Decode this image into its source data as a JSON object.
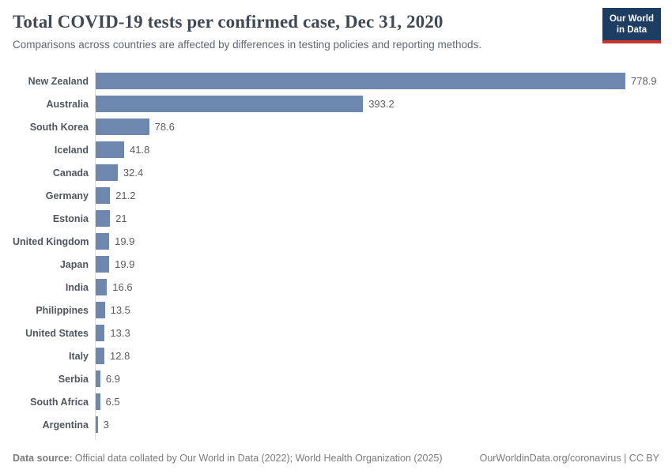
{
  "header": {
    "title": "Total COVID-19 tests per confirmed case, Dec 31, 2020",
    "subtitle": "Comparisons across countries are affected by differences in testing policies and reporting methods.",
    "logo": {
      "line1": "Our World",
      "line2": "in Data"
    }
  },
  "chart_data": {
    "type": "bar",
    "orientation": "horizontal",
    "title": "Total COVID-19 tests per confirmed case, Dec 31, 2020",
    "xlabel": "",
    "ylabel": "",
    "xlim": [
      0,
      778.9
    ],
    "grid": false,
    "legend": false,
    "bar_color": "#6d87ae",
    "categories": [
      "New Zealand",
      "Australia",
      "South Korea",
      "Iceland",
      "Canada",
      "Germany",
      "Estonia",
      "United Kingdom",
      "Japan",
      "India",
      "Philippines",
      "United States",
      "Italy",
      "Serbia",
      "South Africa",
      "Argentina"
    ],
    "values": [
      778.9,
      393.2,
      78.6,
      41.8,
      32.4,
      21.2,
      21,
      19.9,
      19.9,
      16.6,
      13.5,
      13.3,
      12.8,
      6.9,
      6.5,
      3
    ],
    "value_labels": [
      "778.9",
      "393.2",
      "78.6",
      "41.8",
      "32.4",
      "21.2",
      "21",
      "19.9",
      "19.9",
      "16.6",
      "13.5",
      "13.3",
      "12.8",
      "6.9",
      "6.5",
      "3"
    ]
  },
  "footer": {
    "source_label": "Data source:",
    "source_text": "Official data collated by Our World in Data (2022); World Health Organization (2025)",
    "link_text": "OurWorldinData.org/coronavirus | CC BY"
  },
  "colors": {
    "bar": "#6d87ae",
    "title": "#404a56",
    "logo_navy": "#1d3d63",
    "logo_red": "#c9342b",
    "axis_line": "#d9dde2"
  }
}
